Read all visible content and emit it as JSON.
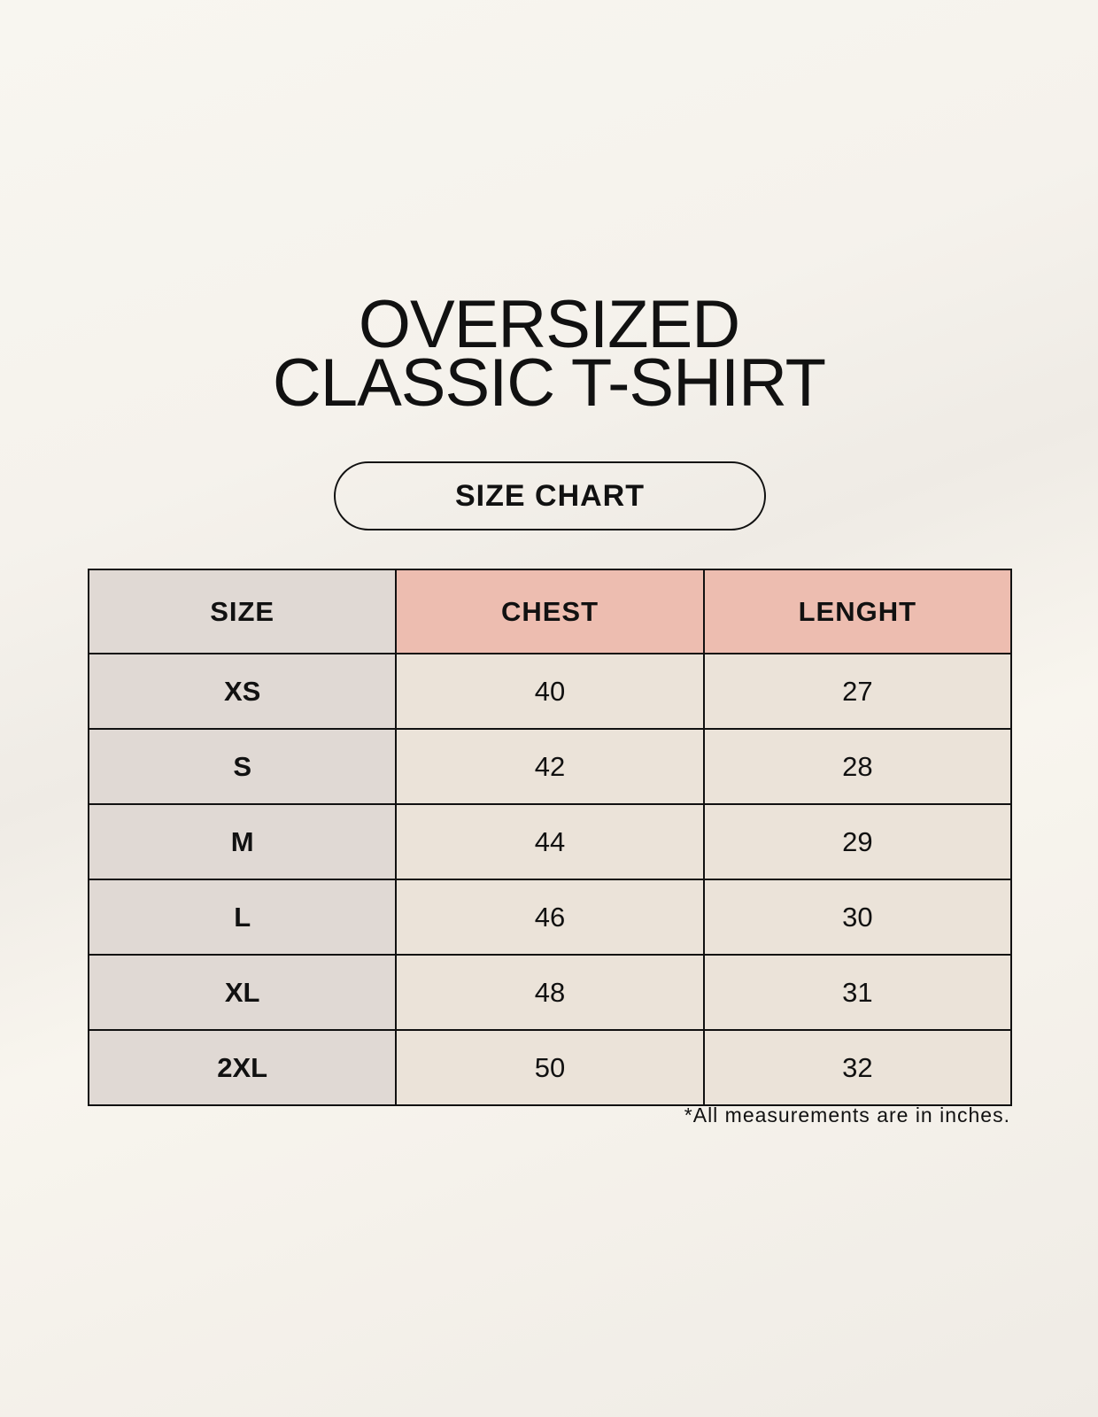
{
  "title": {
    "line1": "OVERSIZED",
    "line2": "CLASSIC T-SHIRT"
  },
  "subtitle": "SIZE CHART",
  "table": {
    "headers": [
      "SIZE",
      "CHEST",
      "LENGHT"
    ],
    "rows": [
      [
        "XS",
        "40",
        "27"
      ],
      [
        "S",
        "42",
        "28"
      ],
      [
        "M",
        "44",
        "29"
      ],
      [
        "L",
        "46",
        "30"
      ],
      [
        "XL",
        "48",
        "31"
      ],
      [
        "2XL",
        "50",
        "32"
      ]
    ]
  },
  "footnote": "*All measurements are in inches.",
  "colors": {
    "size_column": "#e0d9d4",
    "header_accent": "#edbdb0",
    "cell": "#ebe3d9"
  }
}
